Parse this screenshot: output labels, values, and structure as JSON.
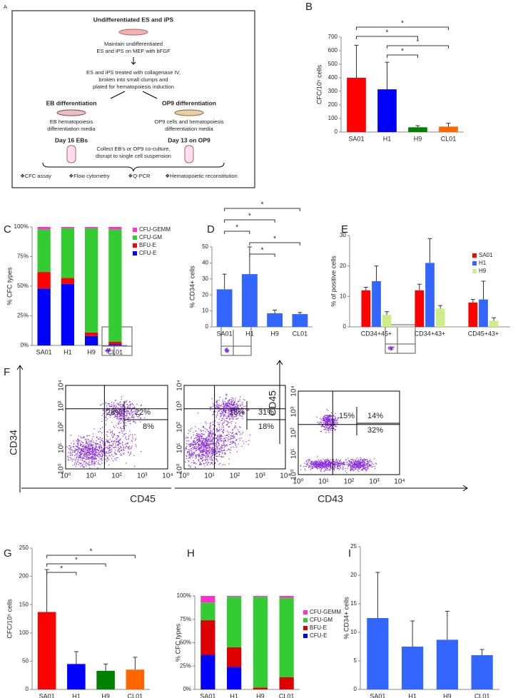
{
  "diagram": {
    "panel": "A",
    "title": "Undifferentiated ES and iPS",
    "maintain": [
      "Maintain undifferentiated",
      "ES and iPS on MEF with bFGF"
    ],
    "treat": [
      "ES and iPS treated with collagenase IV,",
      "broken into small clumps and",
      "plated for hematopoiesis induction"
    ],
    "branches": [
      {
        "name": "EB differentiation",
        "media": [
          "EB hematopoiesis",
          "differentiation media"
        ],
        "day": "Day 16 EBs"
      },
      {
        "name": "OP9 differentiation",
        "media": [
          "OP9 cells and hematopoiesis",
          "differentiation media"
        ],
        "day": "Day 13 on OP9"
      }
    ],
    "collect": [
      "Collect EB's or OP9 co-culture,",
      "disrupt to single cell suspension"
    ],
    "assays": [
      "❖CFC assay",
      "❖Flow cytometry",
      "❖Q-PCR",
      "❖Hematopoietic  reconstitution"
    ]
  },
  "flow": {
    "panel": "F",
    "tick_labels": [
      "10⁰",
      "10¹",
      "10²",
      "10³",
      "10⁴"
    ],
    "axis_labels": {
      "y_left": "CD34",
      "x_left": "CD45",
      "x_right": "CD43",
      "y_right": "CD45"
    },
    "plots": [
      {
        "quadrants": [
          "28%",
          "22%",
          "8%"
        ]
      },
      {
        "quadrants": [
          "18%",
          "31%",
          "18%"
        ]
      },
      {
        "quadrants": [
          "15%",
          "14%",
          "32%"
        ]
      }
    ]
  },
  "chart_data": [
    {
      "type": "bar",
      "panel": "B",
      "y_label": "CFC/10⁵ cells",
      "categories": [
        "SA01",
        "H1",
        "H9",
        "CL01"
      ],
      "values": [
        400,
        315,
        35,
        40
      ],
      "errors": [
        240,
        200,
        12,
        25
      ],
      "colors": [
        "#ff0000",
        "#0000ff",
        "#008000",
        "#ff6600"
      ],
      "ylim": [
        0,
        700
      ],
      "yticks": [
        0,
        100,
        200,
        300,
        400,
        500,
        600,
        700
      ],
      "brackets": [
        {
          "from": "SA01",
          "to": "CL01",
          "label": "*"
        },
        {
          "from": "SA01",
          "to": "H9",
          "label": "*"
        },
        {
          "from": "H1",
          "to": "CL01",
          "label": "*"
        },
        {
          "from": "H1",
          "to": "H9",
          "label": "*"
        }
      ]
    },
    {
      "type": "stacked_bar",
      "panel": "C",
      "y_label": "% CFC types",
      "categories": [
        "SA01",
        "H1",
        "H9",
        "CL01"
      ],
      "series": [
        {
          "name": "CFU-E",
          "color": "#0000ff",
          "values": [
            48,
            52,
            8,
            1
          ]
        },
        {
          "name": "BFU-E",
          "color": "#ff0000",
          "values": [
            14,
            5,
            3,
            2
          ]
        },
        {
          "name": "CFU-GM",
          "color": "#33cc33",
          "values": [
            36,
            42,
            88,
            95
          ]
        },
        {
          "name": "CFU-GEMM",
          "color": "#ff33cc",
          "values": [
            2,
            1,
            1,
            2
          ]
        }
      ],
      "ylim": [
        0,
        100
      ],
      "yticks": [
        {
          "value": 0,
          "label": "0%"
        },
        {
          "value": 25,
          "label": "25%"
        },
        {
          "value": 50,
          "label": "50%"
        },
        {
          "value": 75,
          "label": "75%"
        },
        {
          "value": 100,
          "label": "100%"
        }
      ]
    },
    {
      "type": "bar",
      "panel": "D",
      "y_label": "% CD34+ cells",
      "categories": [
        "SA01",
        "H1",
        "H9",
        "CL01"
      ],
      "values": [
        23.5,
        33,
        8.5,
        8
      ],
      "errors": [
        9.5,
        17,
        2,
        1
      ],
      "color": "#3366ff",
      "ylim": [
        0,
        50
      ],
      "yticks": [
        0,
        10,
        20,
        30,
        40,
        50
      ],
      "brackets": [
        {
          "from": "SA01",
          "to": "CL01",
          "label": "*"
        },
        {
          "from": "SA01",
          "to": "H9",
          "label": "*"
        },
        {
          "from": "SA01",
          "to": "H1",
          "label": "*"
        },
        {
          "from": "H1",
          "to": "CL01",
          "label": "*"
        },
        {
          "from": "H1",
          "to": "H9",
          "label": "*"
        }
      ]
    },
    {
      "type": "grouped_bar",
      "panel": "E",
      "y_label": "% of positive cells",
      "categories": [
        "CD34+45+",
        "CD34+43+",
        "CD45+43+"
      ],
      "series": [
        {
          "name": "SA01",
          "color": "#ff0000",
          "values": [
            12,
            12,
            8
          ],
          "errors": [
            1,
            2,
            1
          ]
        },
        {
          "name": "H1",
          "color": "#3366ff",
          "values": [
            15,
            21,
            9
          ],
          "errors": [
            5,
            8,
            6
          ]
        },
        {
          "name": "H9",
          "color": "#ccee88",
          "values": [
            4,
            6,
            2
          ],
          "errors": [
            1,
            1,
            1
          ]
        }
      ],
      "ylim": [
        0,
        30
      ],
      "yticks": [
        0,
        10,
        20,
        30
      ]
    },
    {
      "type": "bar",
      "panel": "G",
      "y_label": "CFC/10⁵ cells",
      "categories": [
        "SA01",
        "H1",
        "H9",
        "CL01"
      ],
      "values": [
        137,
        45,
        33,
        35
      ],
      "errors": [
        75,
        22,
        12,
        22
      ],
      "colors": [
        "#ff0000",
        "#0000ff",
        "#008000",
        "#ff6600"
      ],
      "ylim": [
        0,
        250
      ],
      "yticks": [
        0,
        50,
        100,
        150,
        200,
        250
      ],
      "brackets": [
        {
          "from": "SA01",
          "to": "CL01",
          "label": "*"
        },
        {
          "from": "SA01",
          "to": "H9",
          "label": "*"
        },
        {
          "from": "SA01",
          "to": "H1",
          "label": "*"
        }
      ]
    },
    {
      "type": "stacked_bar",
      "panel": "H",
      "y_label": "% CFC types",
      "categories": [
        "SA01",
        "H1",
        "H9",
        "CL01"
      ],
      "series": [
        {
          "name": "CFU-E",
          "color": "#0000ff",
          "values": [
            37,
            24,
            0,
            0
          ]
        },
        {
          "name": "BFU-E",
          "color": "#dd0000",
          "values": [
            37,
            21,
            2,
            13
          ]
        },
        {
          "name": "CFU-GM",
          "color": "#33cc33",
          "values": [
            19,
            54,
            97,
            85
          ]
        },
        {
          "name": "CFU-GEMM",
          "color": "#ff33cc",
          "values": [
            7,
            1,
            1,
            2
          ]
        }
      ],
      "ylim": [
        0,
        100
      ],
      "yticks": [
        {
          "value": 0,
          "label": "0%"
        },
        {
          "value": 25,
          "label": "25%"
        },
        {
          "value": 50,
          "label": "50%"
        },
        {
          "value": 75,
          "label": "75%"
        },
        {
          "value": 100,
          "label": "100%"
        }
      ]
    },
    {
      "type": "bar",
      "panel": "I",
      "y_label": "% CD34+ cells",
      "categories": [
        "SA01",
        "H1",
        "H9",
        "CL01"
      ],
      "values": [
        12.5,
        7.5,
        8.7,
        6
      ],
      "errors": [
        8,
        4.5,
        5,
        1
      ],
      "color": "#3366ff",
      "ylim": [
        0,
        25
      ],
      "yticks": [
        0,
        5,
        10,
        15,
        20,
        25
      ]
    }
  ]
}
